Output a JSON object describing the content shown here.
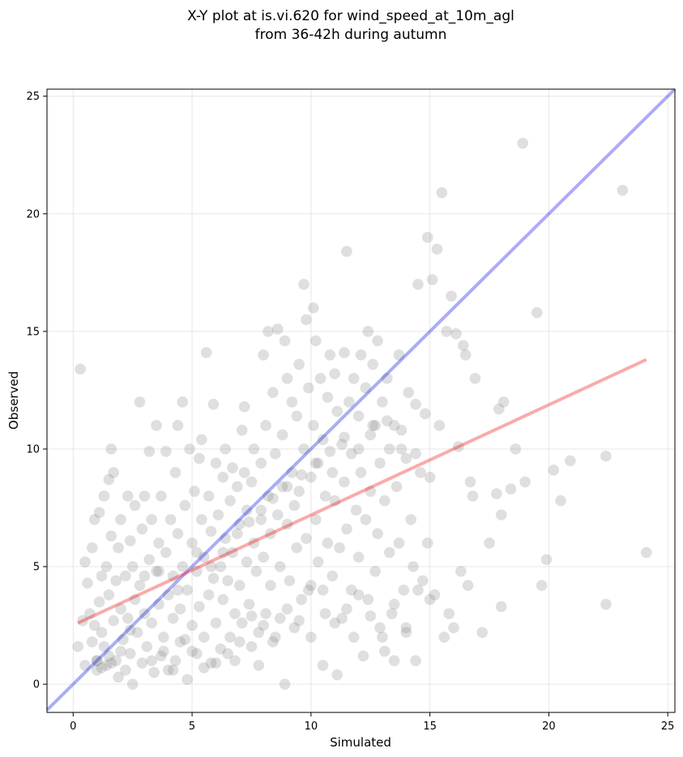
{
  "chart_data": {
    "type": "scatter",
    "title": "X-Y plot at is.vi.620 for wind_speed_at_10m_agl",
    "subtitle": "from 36-42h during autumn",
    "xlabel": "Simulated",
    "ylabel": "Observed",
    "xlim": [
      -1.1,
      25.3
    ],
    "ylim": [
      -1.2,
      25.3
    ],
    "xticks": [
      0,
      5,
      10,
      15,
      20,
      25
    ],
    "yticks": [
      0,
      5,
      10,
      15,
      20,
      25
    ],
    "grid": true,
    "colors": {
      "points": "#808080",
      "identity_line": "#0000ee",
      "fit_line": "#ee0000"
    },
    "identity_line": {
      "x": [
        -1.1,
        25.3
      ],
      "y": [
        -1.1,
        25.3
      ]
    },
    "fit_line": {
      "x": [
        0.2,
        24.1
      ],
      "y": [
        2.6,
        13.8
      ]
    },
    "points": [
      [
        0.3,
        13.4
      ],
      [
        0.2,
        1.6
      ],
      [
        0.4,
        2.7
      ],
      [
        0.5,
        5.2
      ],
      [
        0.5,
        0.8
      ],
      [
        0.6,
        4.3
      ],
      [
        0.7,
        3.0
      ],
      [
        0.8,
        5.8
      ],
      [
        0.8,
        1.8
      ],
      [
        0.9,
        7.0
      ],
      [
        0.9,
        2.5
      ],
      [
        1.0,
        1.0
      ],
      [
        1.0,
        0.6
      ],
      [
        1.1,
        7.3
      ],
      [
        1.1,
        3.5
      ],
      [
        1.2,
        4.6
      ],
      [
        1.2,
        2.2
      ],
      [
        1.3,
        8.0
      ],
      [
        1.3,
        1.6
      ],
      [
        1.4,
        5.0
      ],
      [
        1.4,
        0.8
      ],
      [
        1.5,
        8.7
      ],
      [
        1.5,
        3.8
      ],
      [
        1.5,
        1.2
      ],
      [
        1.6,
        10.0
      ],
      [
        1.6,
        6.3
      ],
      [
        1.7,
        9.0
      ],
      [
        1.7,
        2.7
      ],
      [
        1.8,
        1.0
      ],
      [
        1.8,
        4.4
      ],
      [
        1.9,
        5.8
      ],
      [
        1.9,
        0.3
      ],
      [
        2.0,
        3.2
      ],
      [
        2.0,
        7.0
      ],
      [
        2.1,
        1.9
      ],
      [
        2.2,
        4.6
      ],
      [
        2.2,
        0.6
      ],
      [
        2.3,
        8.0
      ],
      [
        2.3,
        2.8
      ],
      [
        2.4,
        6.1
      ],
      [
        2.4,
        1.3
      ],
      [
        2.5,
        5.0
      ],
      [
        2.5,
        0.0
      ],
      [
        2.6,
        3.6
      ],
      [
        2.6,
        7.6
      ],
      [
        2.7,
        2.2
      ],
      [
        2.8,
        12.0
      ],
      [
        2.8,
        4.2
      ],
      [
        2.9,
        0.9
      ],
      [
        2.9,
        6.6
      ],
      [
        3.0,
        3.0
      ],
      [
        3.0,
        8.0
      ],
      [
        3.1,
        1.6
      ],
      [
        3.2,
        5.3
      ],
      [
        3.2,
        9.9
      ],
      [
        3.3,
        2.6
      ],
      [
        3.3,
        7.0
      ],
      [
        3.4,
        0.5
      ],
      [
        3.5,
        4.8
      ],
      [
        3.5,
        11.0
      ],
      [
        3.6,
        3.4
      ],
      [
        3.6,
        6.0
      ],
      [
        3.7,
        1.2
      ],
      [
        3.7,
        8.0
      ],
      [
        3.8,
        2.0
      ],
      [
        3.9,
        5.6
      ],
      [
        3.9,
        9.9
      ],
      [
        4.0,
        3.8
      ],
      [
        4.0,
        0.6
      ],
      [
        4.1,
        7.0
      ],
      [
        4.2,
        2.8
      ],
      [
        4.2,
        4.6
      ],
      [
        4.3,
        9.0
      ],
      [
        4.3,
        1.0
      ],
      [
        4.4,
        6.4
      ],
      [
        4.4,
        11.0
      ],
      [
        4.5,
        3.2
      ],
      [
        4.6,
        5.0
      ],
      [
        4.6,
        12.0
      ],
      [
        4.7,
        1.9
      ],
      [
        4.7,
        7.6
      ],
      [
        4.8,
        4.0
      ],
      [
        4.8,
        0.2
      ],
      [
        4.9,
        10.0
      ],
      [
        5.0,
        6.0
      ],
      [
        5.0,
        2.5
      ],
      [
        5.1,
        8.2
      ],
      [
        5.2,
        4.8
      ],
      [
        5.2,
        1.3
      ],
      [
        5.3,
        9.6
      ],
      [
        5.3,
        3.3
      ],
      [
        5.4,
        7.0
      ],
      [
        5.4,
        10.4
      ],
      [
        5.5,
        5.4
      ],
      [
        5.5,
        2.0
      ],
      [
        5.6,
        14.1
      ],
      [
        5.7,
        8.0
      ],
      [
        5.7,
        3.8
      ],
      [
        5.8,
        6.5
      ],
      [
        5.8,
        0.9
      ],
      [
        5.9,
        11.9
      ],
      [
        5.9,
        4.5
      ],
      [
        6.0,
        9.4
      ],
      [
        6.0,
        2.6
      ],
      [
        6.1,
        7.2
      ],
      [
        6.2,
        5.0
      ],
      [
        6.2,
        1.5
      ],
      [
        6.3,
        8.8
      ],
      [
        6.3,
        3.6
      ],
      [
        6.4,
        6.2
      ],
      [
        6.4,
        10.0
      ],
      [
        6.5,
        4.4
      ],
      [
        6.6,
        2.0
      ],
      [
        6.6,
        7.8
      ],
      [
        6.7,
        9.2
      ],
      [
        6.7,
        5.6
      ],
      [
        6.8,
        3.0
      ],
      [
        6.8,
        1.0
      ],
      [
        6.9,
        8.4
      ],
      [
        7.0,
        6.8
      ],
      [
        7.0,
        4.2
      ],
      [
        7.1,
        10.8
      ],
      [
        7.1,
        2.6
      ],
      [
        7.2,
        11.8
      ],
      [
        7.2,
        9.0
      ],
      [
        7.3,
        5.2
      ],
      [
        7.3,
        7.4
      ],
      [
        7.4,
        3.4
      ],
      [
        7.5,
        1.6
      ],
      [
        7.5,
        8.6
      ],
      [
        7.6,
        6.0
      ],
      [
        7.6,
        10.0
      ],
      [
        7.7,
        4.8
      ],
      [
        7.8,
        2.2
      ],
      [
        7.8,
        0.8
      ],
      [
        7.9,
        9.4
      ],
      [
        7.9,
        7.0
      ],
      [
        8.0,
        14.0
      ],
      [
        8.0,
        5.4
      ],
      [
        8.1,
        3.0
      ],
      [
        8.1,
        11.0
      ],
      [
        8.2,
        8.0
      ],
      [
        8.2,
        15.0
      ],
      [
        8.3,
        6.4
      ],
      [
        8.3,
        4.2
      ],
      [
        8.4,
        1.8
      ],
      [
        8.4,
        12.4
      ],
      [
        8.5,
        9.8
      ],
      [
        8.6,
        7.2
      ],
      [
        8.6,
        15.1
      ],
      [
        8.7,
        5.0
      ],
      [
        8.7,
        2.8
      ],
      [
        8.8,
        10.6
      ],
      [
        8.8,
        8.4
      ],
      [
        8.9,
        14.6
      ],
      [
        8.9,
        0.0
      ],
      [
        9.0,
        6.8
      ],
      [
        9.0,
        13.0
      ],
      [
        9.1,
        4.4
      ],
      [
        9.2,
        12.0
      ],
      [
        9.2,
        9.0
      ],
      [
        9.3,
        7.6
      ],
      [
        9.3,
        2.4
      ],
      [
        9.4,
        11.4
      ],
      [
        9.4,
        5.8
      ],
      [
        9.5,
        13.6
      ],
      [
        9.5,
        8.2
      ],
      [
        9.6,
        3.6
      ],
      [
        9.7,
        10.0
      ],
      [
        9.7,
        17.0
      ],
      [
        9.8,
        6.2
      ],
      [
        9.8,
        15.5
      ],
      [
        9.9,
        12.6
      ],
      [
        9.9,
        4.0
      ],
      [
        10.0,
        8.8
      ],
      [
        10.0,
        2.0
      ],
      [
        10.1,
        16.0
      ],
      [
        10.1,
        11.0
      ],
      [
        10.2,
        7.0
      ],
      [
        10.2,
        14.6
      ],
      [
        10.3,
        9.4
      ],
      [
        10.3,
        5.2
      ],
      [
        10.4,
        13.0
      ],
      [
        10.5,
        0.8
      ],
      [
        10.5,
        10.4
      ],
      [
        10.6,
        8.0
      ],
      [
        10.6,
        3.0
      ],
      [
        10.7,
        12.2
      ],
      [
        10.7,
        6.0
      ],
      [
        10.8,
        14.0
      ],
      [
        10.9,
        9.0
      ],
      [
        10.9,
        4.6
      ],
      [
        11.0,
        13.2
      ],
      [
        11.0,
        7.8
      ],
      [
        11.1,
        11.6
      ],
      [
        11.1,
        0.4
      ],
      [
        11.2,
        5.8
      ],
      [
        11.3,
        10.2
      ],
      [
        11.3,
        2.8
      ],
      [
        11.4,
        14.1
      ],
      [
        11.4,
        8.6
      ],
      [
        11.5,
        18.4
      ],
      [
        11.5,
        6.6
      ],
      [
        11.6,
        12.0
      ],
      [
        11.7,
        4.0
      ],
      [
        11.7,
        9.8
      ],
      [
        11.8,
        13.0
      ],
      [
        11.8,
        2.0
      ],
      [
        11.9,
        7.4
      ],
      [
        12.0,
        11.4
      ],
      [
        12.0,
        5.4
      ],
      [
        12.1,
        14.0
      ],
      [
        12.1,
        9.0
      ],
      [
        12.2,
        1.2
      ],
      [
        12.3,
        12.6
      ],
      [
        12.3,
        7.0
      ],
      [
        12.4,
        15.0
      ],
      [
        12.4,
        3.6
      ],
      [
        12.5,
        10.6
      ],
      [
        12.5,
        8.2
      ],
      [
        12.6,
        13.6
      ],
      [
        12.7,
        4.8
      ],
      [
        12.7,
        11.0
      ],
      [
        12.8,
        6.4
      ],
      [
        12.8,
        14.6
      ],
      [
        12.9,
        2.4
      ],
      [
        12.9,
        9.4
      ],
      [
        13.0,
        12.0
      ],
      [
        13.1,
        1.4
      ],
      [
        13.1,
        7.8
      ],
      [
        13.2,
        13.0
      ],
      [
        13.3,
        5.6
      ],
      [
        13.3,
        10.0
      ],
      [
        13.4,
        3.0
      ],
      [
        13.5,
        11.0
      ],
      [
        13.5,
        1.0
      ],
      [
        13.6,
        8.4
      ],
      [
        13.7,
        14.0
      ],
      [
        13.7,
        6.0
      ],
      [
        13.8,
        10.8
      ],
      [
        13.9,
        4.0
      ],
      [
        14.0,
        9.6
      ],
      [
        14.0,
        2.2
      ],
      [
        14.1,
        12.4
      ],
      [
        14.2,
        7.0
      ],
      [
        14.3,
        5.0
      ],
      [
        14.4,
        11.9
      ],
      [
        14.4,
        1.0
      ],
      [
        14.5,
        17.0
      ],
      [
        14.6,
        9.0
      ],
      [
        14.7,
        4.4
      ],
      [
        14.8,
        11.5
      ],
      [
        14.9,
        19.0
      ],
      [
        14.9,
        6.0
      ],
      [
        15.0,
        8.8
      ],
      [
        15.1,
        17.2
      ],
      [
        15.2,
        3.8
      ],
      [
        15.3,
        18.5
      ],
      [
        15.4,
        11.0
      ],
      [
        15.5,
        20.9
      ],
      [
        15.6,
        2.0
      ],
      [
        15.7,
        15.0
      ],
      [
        15.8,
        3.0
      ],
      [
        15.9,
        16.5
      ],
      [
        16.0,
        2.4
      ],
      [
        16.1,
        14.9
      ],
      [
        16.2,
        10.1
      ],
      [
        16.3,
        4.8
      ],
      [
        16.4,
        14.4
      ],
      [
        16.5,
        14.0
      ],
      [
        16.6,
        4.2
      ],
      [
        16.7,
        8.6
      ],
      [
        16.8,
        8.0
      ],
      [
        16.9,
        13.0
      ],
      [
        17.2,
        2.2
      ],
      [
        17.5,
        6.0
      ],
      [
        17.8,
        8.1
      ],
      [
        17.9,
        11.7
      ],
      [
        18.0,
        7.2
      ],
      [
        18.0,
        3.3
      ],
      [
        18.1,
        12.0
      ],
      [
        18.4,
        8.3
      ],
      [
        18.6,
        10.0
      ],
      [
        18.9,
        23.0
      ],
      [
        19.0,
        8.6
      ],
      [
        19.5,
        15.8
      ],
      [
        19.7,
        4.2
      ],
      [
        19.9,
        5.3
      ],
      [
        20.2,
        9.1
      ],
      [
        20.5,
        7.8
      ],
      [
        20.9,
        9.5
      ],
      [
        22.4,
        9.7
      ],
      [
        22.4,
        3.4
      ],
      [
        23.1,
        21.0
      ],
      [
        24.1,
        5.6
      ],
      [
        1.0,
        1.0
      ],
      [
        1.2,
        0.7
      ],
      [
        1.6,
        0.9
      ],
      [
        2.0,
        1.4
      ],
      [
        2.4,
        2.3
      ],
      [
        3.3,
        1.0
      ],
      [
        3.8,
        1.4
      ],
      [
        4.2,
        0.6
      ],
      [
        4.5,
        1.8
      ],
      [
        5.0,
        1.4
      ],
      [
        5.5,
        0.7
      ],
      [
        6.0,
        0.9
      ],
      [
        6.5,
        1.3
      ],
      [
        7.0,
        1.8
      ],
      [
        7.5,
        2.9
      ],
      [
        8.0,
        2.5
      ],
      [
        8.5,
        2.0
      ],
      [
        9.0,
        3.2
      ],
      [
        9.5,
        2.7
      ],
      [
        10.0,
        4.2
      ],
      [
        10.5,
        4.0
      ],
      [
        11.0,
        2.6
      ],
      [
        11.5,
        3.2
      ],
      [
        12.0,
        3.8
      ],
      [
        12.5,
        2.9
      ],
      [
        13.0,
        2.0
      ],
      [
        13.5,
        3.4
      ],
      [
        14.0,
        2.4
      ],
      [
        14.5,
        4.0
      ],
      [
        15.0,
        3.6
      ],
      [
        3.0,
        4.6
      ],
      [
        3.6,
        4.8
      ],
      [
        4.4,
        4.0
      ],
      [
        5.2,
        5.6
      ],
      [
        5.8,
        5.0
      ],
      [
        6.3,
        5.6
      ],
      [
        6.9,
        6.4
      ],
      [
        7.4,
        6.9
      ],
      [
        7.9,
        7.4
      ],
      [
        8.4,
        7.9
      ],
      [
        9.0,
        8.4
      ],
      [
        9.6,
        8.9
      ],
      [
        10.2,
        9.4
      ],
      [
        10.8,
        9.9
      ],
      [
        11.4,
        10.5
      ],
      [
        12.0,
        10.0
      ],
      [
        12.6,
        11.0
      ],
      [
        13.2,
        11.2
      ],
      [
        13.8,
        10.0
      ],
      [
        14.4,
        9.8
      ]
    ]
  }
}
